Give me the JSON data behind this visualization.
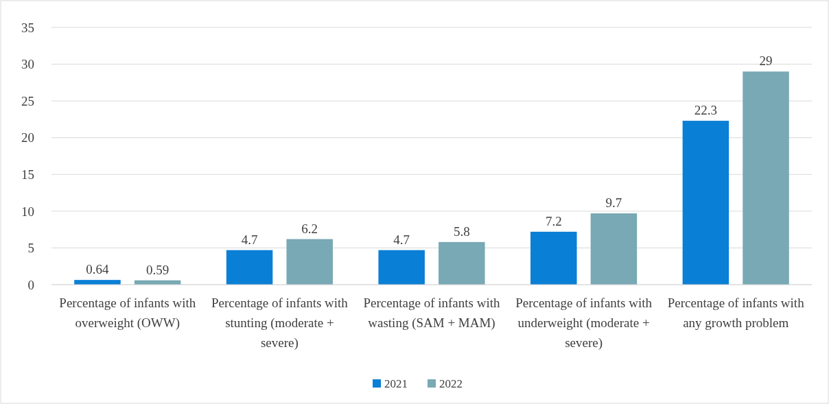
{
  "chart_data": {
    "type": "bar",
    "categories": [
      "Percentage of infants with overweight (OWW)",
      "Percentage of infants with stunting (moderate + severe)",
      "Percentage of infants with wasting (SAM + MAM)",
      "Percentage of infants with underweight (moderate + severe)",
      "Percentage of infants with any growth problem"
    ],
    "series": [
      {
        "name": "2021",
        "color": "#0a7fd6",
        "values": [
          0.64,
          4.7,
          4.7,
          7.2,
          22.3
        ]
      },
      {
        "name": "2022",
        "color": "#78a9b4",
        "values": [
          0.59,
          6.2,
          5.8,
          9.7,
          29
        ]
      }
    ],
    "ylim": [
      0,
      35
    ],
    "yticks": [
      0,
      5,
      10,
      15,
      20,
      25,
      30,
      35
    ],
    "grid": "y",
    "legend": "bottom",
    "data_labels": true
  }
}
